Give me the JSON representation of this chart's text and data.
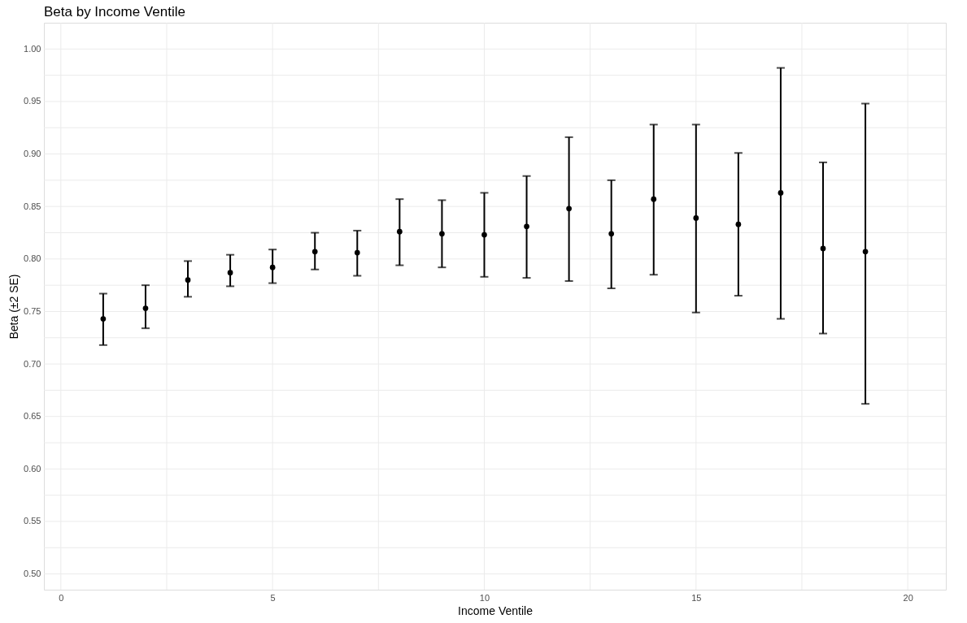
{
  "chart_data": {
    "type": "scatter",
    "title": "Beta by Income Ventile",
    "xlabel": "Income Ventile",
    "ylabel": "Beta (±2 SE)",
    "x": [
      1,
      2,
      3,
      4,
      5,
      6,
      7,
      8,
      9,
      10,
      11,
      12,
      13,
      14,
      15,
      16,
      17,
      18,
      19
    ],
    "series": [
      {
        "color": "#000000",
        "values": [
          0.743,
          0.753,
          0.78,
          0.787,
          0.792,
          0.807,
          0.806,
          0.826,
          0.824,
          0.823,
          0.831,
          0.848,
          0.824,
          0.857,
          0.839,
          0.833,
          0.863,
          0.81,
          0.807
        ],
        "errors": [
          [
            0.718,
            0.767
          ],
          [
            0.734,
            0.775
          ],
          [
            0.764,
            0.798
          ],
          [
            0.774,
            0.804
          ],
          [
            0.777,
            0.809
          ],
          [
            0.79,
            0.825
          ],
          [
            0.784,
            0.827
          ],
          [
            0.794,
            0.857
          ],
          [
            0.792,
            0.856
          ],
          [
            0.783,
            0.863
          ],
          [
            0.782,
            0.879
          ],
          [
            0.779,
            0.916
          ],
          [
            0.772,
            0.875
          ],
          [
            0.785,
            0.928
          ],
          [
            0.749,
            0.928
          ],
          [
            0.765,
            0.901
          ],
          [
            0.743,
            0.982
          ],
          [
            0.729,
            0.892
          ],
          [
            0.662,
            0.948
          ]
        ]
      }
    ],
    "xlim": [
      -0.4,
      20.9
    ],
    "ylim": [
      0.485,
      1.025
    ],
    "xticks": [
      0,
      {
        "value": 2.5,
        "label": null
      },
      5,
      {
        "value": 7.5,
        "label": null
      },
      10,
      {
        "value": 12.5,
        "label": null
      },
      15,
      {
        "value": 17.5,
        "label": null
      },
      20
    ],
    "yticks": [
      {
        "value": 0.5,
        "label": "0.50"
      },
      {
        "value": 0.525,
        "label": null
      },
      {
        "value": 0.55,
        "label": "0.55"
      },
      {
        "value": 0.575,
        "label": null
      },
      {
        "value": 0.6,
        "label": "0.60"
      },
      {
        "value": 0.625,
        "label": null
      },
      {
        "value": 0.65,
        "label": "0.65"
      },
      {
        "value": 0.675,
        "label": null
      },
      {
        "value": 0.7,
        "label": "0.70"
      },
      {
        "value": 0.725,
        "label": null
      },
      {
        "value": 0.75,
        "label": "0.75"
      },
      {
        "value": 0.775,
        "label": null
      },
      {
        "value": 0.8,
        "label": "0.80"
      },
      {
        "value": 0.825,
        "label": null
      },
      {
        "value": 0.85,
        "label": "0.85"
      },
      {
        "value": 0.875,
        "label": null
      },
      {
        "value": 0.9,
        "label": "0.90"
      },
      {
        "value": 0.925,
        "label": null
      },
      {
        "value": 0.95,
        "label": "0.95"
      },
      {
        "value": 0.975,
        "label": null
      },
      {
        "value": 1.0,
        "label": "1.00"
      }
    ],
    "grid": true,
    "marker": "circle"
  }
}
